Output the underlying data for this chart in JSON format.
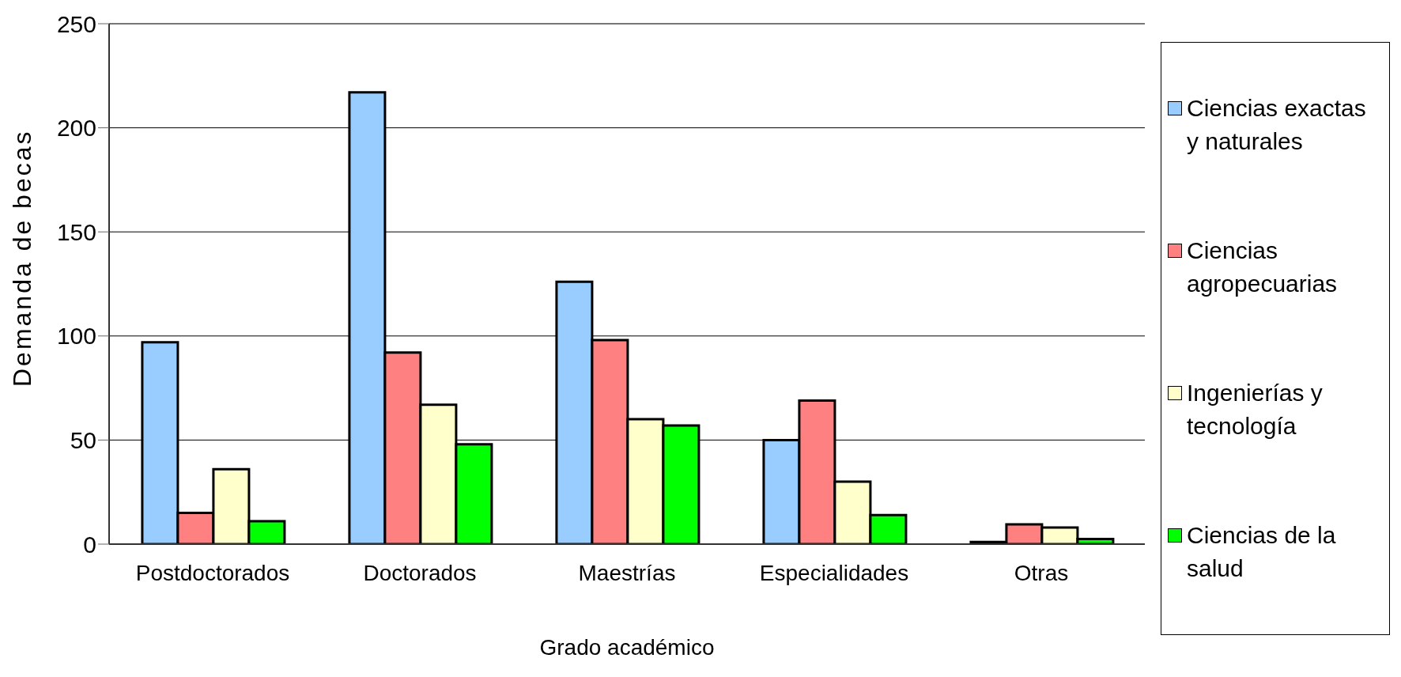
{
  "chart_data": {
    "type": "bar",
    "xlabel": "Grado académico",
    "ylabel": "Demanda de becas",
    "categories": [
      "Postdoctorados",
      "Doctorados",
      "Maestrías",
      "Especialidades",
      "Otras"
    ],
    "series": [
      {
        "name": "Ciencias exactas y naturales",
        "color": "#99ccff",
        "values": [
          97,
          217,
          126,
          50,
          1
        ]
      },
      {
        "name": "Ciencias agropecuarias",
        "color": "#ff8080",
        "values": [
          15,
          92,
          98,
          69,
          9.5
        ]
      },
      {
        "name": "Ingenierías y tecnología",
        "color": "#ffffcc",
        "values": [
          36,
          67,
          60,
          30,
          8
        ]
      },
      {
        "name": "Ciencias de la salud",
        "color": "#00ff00",
        "values": [
          11,
          48,
          57,
          14,
          2.5
        ]
      }
    ],
    "ylim": [
      0,
      250
    ],
    "yticks": [
      0,
      50,
      100,
      150,
      200,
      250
    ],
    "grid": "y",
    "legend": "right"
  }
}
